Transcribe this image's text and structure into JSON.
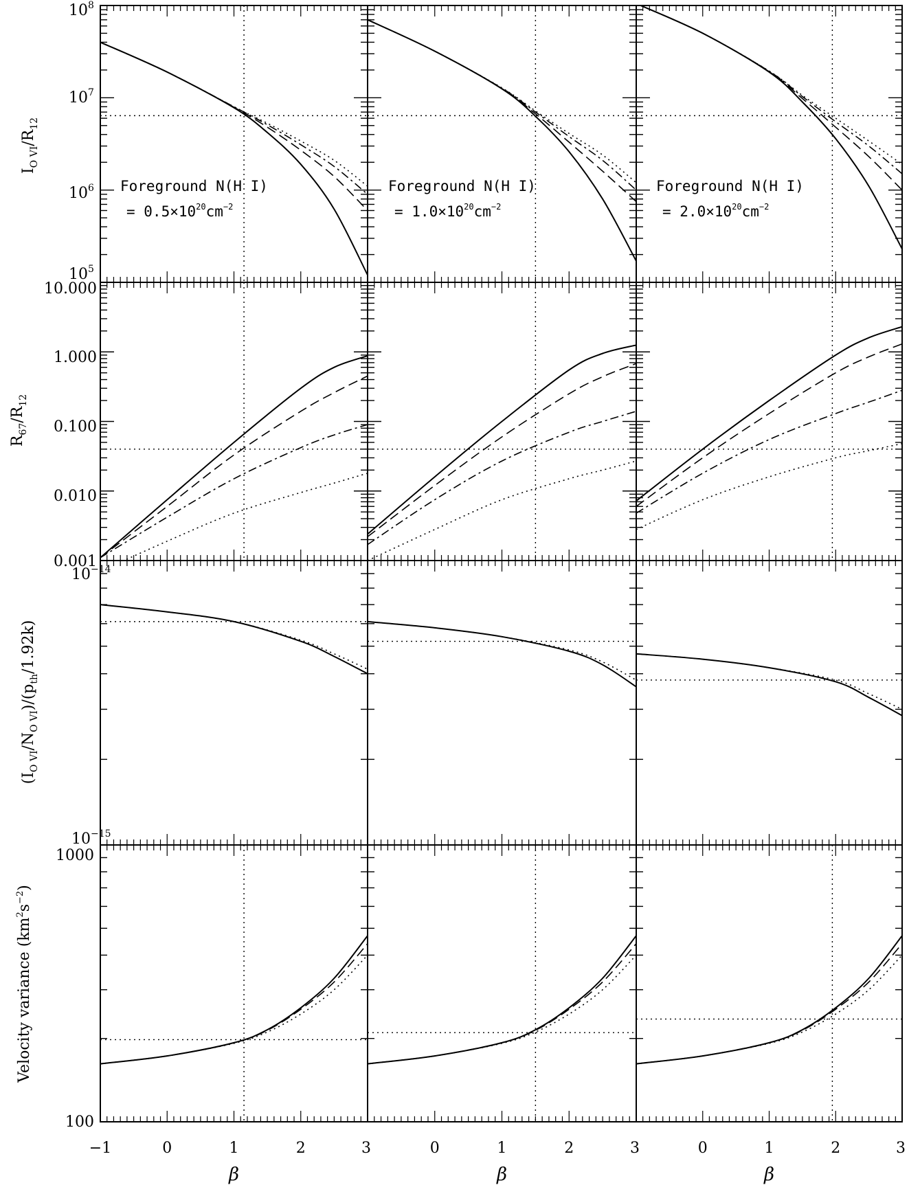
{
  "chart_data": {
    "type": "line",
    "xlabel": "β",
    "x_ticks": [
      "−1",
      "0",
      "1",
      "2",
      "3"
    ],
    "xlim": [
      -1,
      3
    ],
    "columns": [
      {
        "annotation_line1": "Foreground N(H I)",
        "annotation_line2_prefix": "=  0.5×10",
        "annotation_exp": "20",
        "annotation_unit": "cm",
        "annotation_unit_exp": "−2",
        "beta_ref": 1.15
      },
      {
        "annotation_line1": "Foreground N(H I)",
        "annotation_line2_prefix": "=  1.0×10",
        "annotation_exp": "20",
        "annotation_unit": "cm",
        "annotation_unit_exp": "−2",
        "beta_ref": 1.5
      },
      {
        "annotation_line1": "Foreground N(H I)",
        "annotation_line2_prefix": "=  2.0×10",
        "annotation_exp": "20",
        "annotation_unit": "cm",
        "annotation_unit_exp": "−2",
        "beta_ref": 1.95
      }
    ],
    "rows": [
      {
        "ylabel_main": "I",
        "ylabel_sub": "O VI",
        "ylabel_mid": "/R",
        "ylabel_sub2": "12",
        "scale": "log",
        "ylim": [
          100000,
          100000000
        ],
        "y_ticks": [
          {
            "base": "10",
            "exp": "8"
          },
          {
            "base": "10",
            "exp": "7"
          },
          {
            "base": "10",
            "exp": "6"
          },
          {
            "base": "10",
            "exp": "5"
          }
        ],
        "h_ref": [
          6400000,
          6400000,
          6400000
        ],
        "panels": [
          {
            "x": [
              -1,
              0,
              1,
              1.5,
              2,
              2.5,
              3
            ],
            "series": [
              {
                "style": "solid",
                "y": [
                  40000000,
                  19000000,
                  7800000,
                  4200000,
                  1900000,
                  620000,
                  120000
                ]
              },
              {
                "style": "dash",
                "y": [
                  40000000,
                  19000000,
                  7900000,
                  4800000,
                  2700000,
                  1400000,
                  600000
                ]
              },
              {
                "style": "dashdot",
                "y": [
                  40000000,
                  19000000,
                  8000000,
                  5100000,
                  3100000,
                  1800000,
                  900000
                ]
              },
              {
                "style": "dot",
                "y": [
                  40000000,
                  19000000,
                  8000000,
                  5300000,
                  3400000,
                  2100000,
                  1100000
                ]
              }
            ]
          },
          {
            "x": [
              -1,
              0,
              1,
              1.5,
              2,
              2.5,
              3
            ],
            "series": [
              {
                "style": "solid",
                "y": [
                  70000000,
                  32000000,
                  12500000,
                  6300000,
                  2600000,
                  800000,
                  170000
                ]
              },
              {
                "style": "dash",
                "y": [
                  70000000,
                  32000000,
                  12600000,
                  6700000,
                  3300000,
                  1600000,
                  750000
                ]
              },
              {
                "style": "dashdot",
                "y": [
                  70000000,
                  32000000,
                  12700000,
                  7000000,
                  3800000,
                  2100000,
                  1000000
                ]
              },
              {
                "style": "dot",
                "y": [
                  70000000,
                  32000000,
                  12800000,
                  7200000,
                  4100000,
                  2400000,
                  1200000
                ]
              }
            ]
          },
          {
            "x": [
              -1,
              0,
              1,
              1.5,
              2,
              2.5,
              3
            ],
            "series": [
              {
                "style": "solid",
                "y": [
                  105000000,
                  50000000,
                  19000000,
                  9000000,
                  3600000,
                  1100000,
                  230000
                ]
              },
              {
                "style": "dash",
                "y": [
                  105000000,
                  50000000,
                  19200000,
                  9800000,
                  4800000,
                  2300000,
                  1000000
                ]
              },
              {
                "style": "dashdot",
                "y": [
                  105000000,
                  50000000,
                  19400000,
                  10300000,
                  5500000,
                  3000000,
                  1500000
                ]
              },
              {
                "style": "dot",
                "y": [
                  105000000,
                  50000000,
                  19500000,
                  10600000,
                  6000000,
                  3400000,
                  1900000
                ]
              }
            ]
          }
        ]
      },
      {
        "ylabel_main": "R",
        "ylabel_sub": "67",
        "ylabel_mid": "/R",
        "ylabel_sub2": "12",
        "scale": "log",
        "ylim": [
          0.001,
          10
        ],
        "y_ticks": [
          {
            "base": "10.000",
            "exp": ""
          },
          {
            "base": "1.000",
            "exp": ""
          },
          {
            "base": "0.100",
            "exp": ""
          },
          {
            "base": "0.010",
            "exp": ""
          },
          {
            "base": "0.001",
            "exp": ""
          }
        ],
        "h_ref": [
          0.04,
          0.04,
          0.04
        ],
        "panels": [
          {
            "x": [
              -1,
              0,
              1,
              2,
              2.5,
              3
            ],
            "series": [
              {
                "style": "solid",
                "y": [
                  0.0011,
                  0.0075,
                  0.05,
                  0.3,
                  0.6,
                  0.88
                ]
              },
              {
                "style": "dash",
                "y": [
                  0.0011,
                  0.006,
                  0.033,
                  0.14,
                  0.26,
                  0.45
                ]
              },
              {
                "style": "dashdot",
                "y": [
                  0.0011,
                  0.0042,
                  0.015,
                  0.042,
                  0.064,
                  0.09
                ]
              },
              {
                "style": "dot",
                "y": [
                  0.0007,
                  0.0019,
                  0.0048,
                  0.0095,
                  0.013,
                  0.018
                ]
              }
            ]
          },
          {
            "x": [
              -1,
              0,
              1,
              2,
              2.5,
              3
            ],
            "series": [
              {
                "style": "solid",
                "y": [
                  0.0024,
                  0.016,
                  0.1,
                  0.55,
                  0.95,
                  1.25
                ]
              },
              {
                "style": "dash",
                "y": [
                  0.0022,
                  0.012,
                  0.06,
                  0.25,
                  0.44,
                  0.68
                ]
              },
              {
                "style": "dashdot",
                "y": [
                  0.0017,
                  0.0075,
                  0.027,
                  0.07,
                  0.1,
                  0.14
                ]
              },
              {
                "style": "dot",
                "y": [
                  0.001,
                  0.0028,
                  0.0075,
                  0.015,
                  0.02,
                  0.027
                ]
              }
            ]
          },
          {
            "x": [
              -1,
              0,
              1,
              2,
              2.5,
              3
            ],
            "series": [
              {
                "style": "solid",
                "y": [
                  0.0072,
                  0.04,
                  0.2,
                  0.9,
                  1.6,
                  2.3
                ]
              },
              {
                "style": "dash",
                "y": [
                  0.006,
                  0.03,
                  0.13,
                  0.5,
                  0.85,
                  1.3
                ]
              },
              {
                "style": "dashdot",
                "y": [
                  0.0048,
                  0.018,
                  0.055,
                  0.13,
                  0.19,
                  0.28
                ]
              },
              {
                "style": "dot",
                "y": [
                  0.0028,
                  0.0075,
                  0.016,
                  0.03,
                  0.038,
                  0.048
                ]
              }
            ]
          }
        ]
      },
      {
        "ylabel_main": "(I",
        "ylabel_sub": "O VI",
        "ylabel_mid": "/N",
        "ylabel_sub2": "O VI",
        "ylabel_tail": ")/(p",
        "ylabel_sub3": "th",
        "ylabel_end": "/1.92k)",
        "scale": "log",
        "ylim": [
          1e-15,
          1e-14
        ],
        "y_ticks": [
          {
            "base": "10",
            "exp": "−14"
          },
          {
            "base": "10",
            "exp": "−15"
          }
        ],
        "h_ref": [
          6.1e-15,
          5.2e-15,
          3.8e-15
        ],
        "panels": [
          {
            "x": [
              -1,
              0,
              1,
              2,
              2.5,
              3
            ],
            "series": [
              {
                "style": "solid",
                "y": [
                  7e-15,
                  6.6e-15,
                  6.1e-15,
                  5.2e-15,
                  4.6e-15,
                  4e-15
                ]
              },
              {
                "style": "dot",
                "y": [
                  7e-15,
                  6.6e-15,
                  6.1e-15,
                  5.25e-15,
                  4.7e-15,
                  4.15e-15
                ]
              }
            ]
          },
          {
            "x": [
              -1,
              0,
              1,
              2,
              2.5,
              3
            ],
            "series": [
              {
                "style": "solid",
                "y": [
                  6.1e-15,
                  5.8e-15,
                  5.4e-15,
                  4.8e-15,
                  4.3e-15,
                  3.6e-15
                ]
              },
              {
                "style": "dot",
                "y": [
                  6.1e-15,
                  5.8e-15,
                  5.4e-15,
                  4.85e-15,
                  4.4e-15,
                  3.8e-15
                ]
              }
            ]
          },
          {
            "x": [
              -1,
              0,
              1,
              2,
              2.5,
              3
            ],
            "series": [
              {
                "style": "solid",
                "y": [
                  4.7e-15,
                  4.5e-15,
                  4.2e-15,
                  3.75e-15,
                  3.3e-15,
                  2.85e-15
                ]
              },
              {
                "style": "dot",
                "y": [
                  4.7e-15,
                  4.5e-15,
                  4.2e-15,
                  3.8e-15,
                  3.4e-15,
                  3e-15
                ]
              }
            ]
          }
        ]
      },
      {
        "ylabel_main": "Velocity variance (km",
        "ylabel_sup": "2",
        "ylabel_mid": "s",
        "ylabel_sup2": "−2",
        "ylabel_end": ")",
        "scale": "log",
        "ylim": [
          100,
          1000
        ],
        "y_ticks": [
          {
            "base": "1000",
            "exp": ""
          },
          {
            "base": "100",
            "exp": ""
          }
        ],
        "h_ref": [
          198,
          210,
          235
        ],
        "panels": [
          {
            "x": [
              -1,
              0,
              1,
              1.5,
              2,
              2.5,
              3
            ],
            "series": [
              {
                "style": "solid",
                "y": [
                  162,
                  173,
                  193,
                  215,
                  258,
                  330,
                  470
                ]
              },
              {
                "style": "dash",
                "y": [
                  162,
                  173,
                  193,
                  214,
                  255,
                  320,
                  440
                ]
              },
              {
                "style": "dot",
                "y": [
                  162,
                  173,
                  192,
                  211,
                  245,
                  300,
                  400
                ]
              }
            ]
          },
          {
            "x": [
              -1,
              0,
              1,
              1.5,
              2,
              2.5,
              3
            ],
            "series": [
              {
                "style": "solid",
                "y": [
                  162,
                  173,
                  193,
                  215,
                  258,
                  330,
                  470
                ]
              },
              {
                "style": "dash",
                "y": [
                  162,
                  173,
                  193,
                  214,
                  255,
                  320,
                  440
                ]
              },
              {
                "style": "dot",
                "y": [
                  162,
                  173,
                  192,
                  211,
                  245,
                  300,
                  400
                ]
              }
            ]
          },
          {
            "x": [
              -1,
              0,
              1,
              1.5,
              2,
              2.5,
              3
            ],
            "series": [
              {
                "style": "solid",
                "y": [
                  162,
                  173,
                  193,
                  215,
                  258,
                  330,
                  470
                ]
              },
              {
                "style": "dash",
                "y": [
                  162,
                  173,
                  193,
                  214,
                  255,
                  320,
                  440
                ]
              },
              {
                "style": "dot",
                "y": [
                  162,
                  173,
                  192,
                  211,
                  245,
                  300,
                  400
                ]
              }
            ]
          }
        ]
      }
    ]
  }
}
